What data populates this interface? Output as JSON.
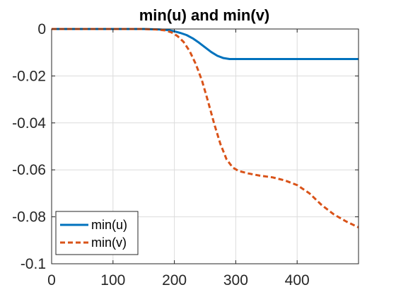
{
  "chart_data": {
    "type": "line",
    "title": "min(u) and min(v)",
    "xlabel": "",
    "ylabel": "",
    "xlim": [
      0,
      500
    ],
    "ylim": [
      -0.1,
      0
    ],
    "xticks": [
      0,
      100,
      200,
      300,
      400
    ],
    "yticks": [
      0,
      -0.02,
      -0.04,
      -0.06,
      -0.08,
      -0.1
    ],
    "xtick_labels": [
      "0",
      "100",
      "200",
      "300",
      "400"
    ],
    "ytick_labels": [
      "0",
      "-0.02",
      "-0.04",
      "-0.06",
      "-0.08",
      "-0.1"
    ],
    "grid": true,
    "legend_position": "bottom-left",
    "series": [
      {
        "name": "min(u)",
        "color": "#0072BD",
        "style": "solid",
        "x": [
          0,
          150,
          175,
          190,
          200,
          210,
          220,
          230,
          240,
          250,
          260,
          270,
          280,
          290,
          300,
          400,
          500
        ],
        "y": [
          0,
          0,
          -0.0002,
          -0.0005,
          -0.001,
          -0.0017,
          -0.0026,
          -0.004,
          -0.0058,
          -0.0078,
          -0.0098,
          -0.0114,
          -0.0124,
          -0.0128,
          -0.0128,
          -0.0128,
          -0.0128
        ]
      },
      {
        "name": "min(v)",
        "color": "#D95319",
        "style": "dashed",
        "x": [
          0,
          150,
          170,
          185,
          195,
          205,
          215,
          225,
          235,
          245,
          255,
          265,
          275,
          285,
          295,
          305,
          320,
          340,
          360,
          380,
          400,
          420,
          440,
          460,
          480,
          500
        ],
        "y": [
          0,
          0,
          -0.0002,
          -0.0006,
          -0.0014,
          -0.003,
          -0.0055,
          -0.0095,
          -0.015,
          -0.022,
          -0.031,
          -0.0405,
          -0.049,
          -0.0555,
          -0.059,
          -0.0605,
          -0.0615,
          -0.0625,
          -0.0632,
          -0.0645,
          -0.0665,
          -0.07,
          -0.075,
          -0.079,
          -0.082,
          -0.0845
        ]
      }
    ]
  }
}
